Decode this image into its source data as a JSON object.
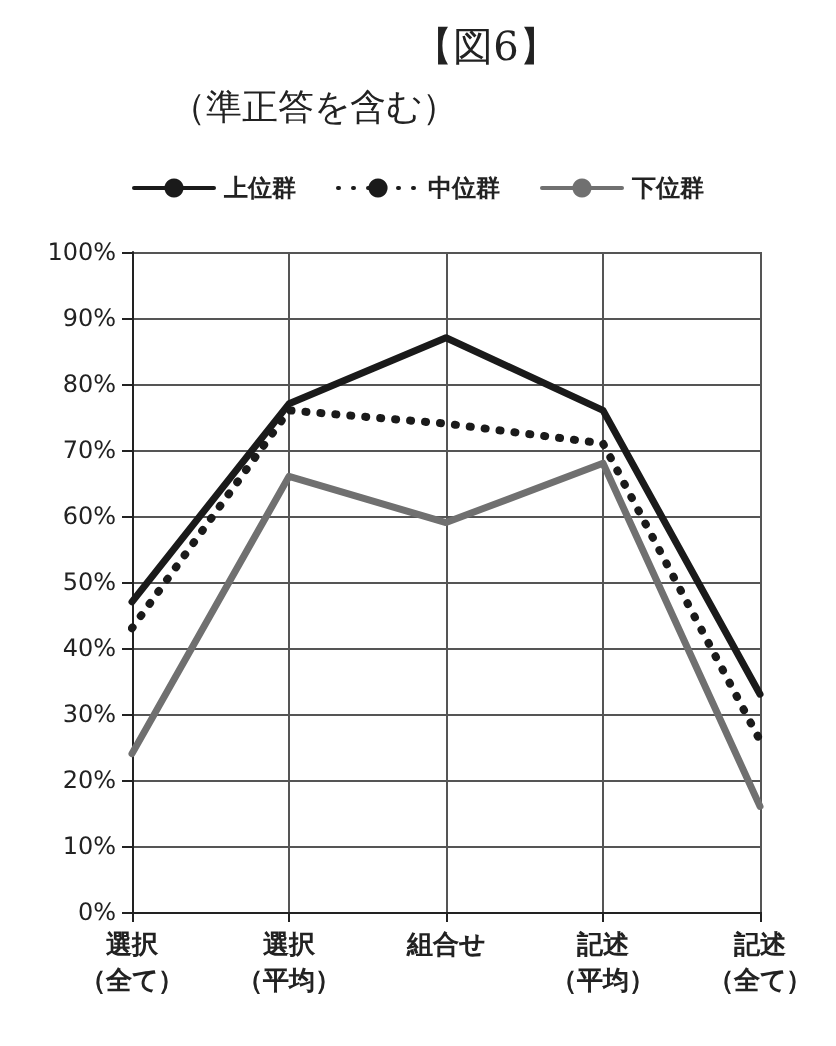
{
  "chart_data": {
    "type": "line",
    "title": "【図6】",
    "subtitle": "（準正答を含む）",
    "categories": [
      "選択（全て）",
      "選択（平均）",
      "組合せ",
      "記述（平均）",
      "記述（全て）"
    ],
    "series": [
      {
        "name": "上位群",
        "color": "#1a1a1a",
        "line_style": "solid",
        "values": [
          47,
          77,
          87,
          76,
          33
        ]
      },
      {
        "name": "中位群",
        "color": "#1a1a1a",
        "line_style": "dotted",
        "values": [
          43,
          76,
          74,
          71,
          26
        ]
      },
      {
        "name": "下位群",
        "color": "#707070",
        "line_style": "solid",
        "values": [
          24,
          66,
          59,
          68,
          16
        ]
      }
    ],
    "ylim": [
      0,
      100
    ],
    "yticks": [
      {
        "value": 0,
        "label": "0%"
      },
      {
        "value": 10,
        "label": "10%"
      },
      {
        "value": 20,
        "label": "20%"
      },
      {
        "value": 30,
        "label": "30%"
      },
      {
        "value": 40,
        "label": "40%"
      },
      {
        "value": 50,
        "label": "50%"
      },
      {
        "value": 60,
        "label": "60%"
      },
      {
        "value": 70,
        "label": "70%"
      },
      {
        "value": 80,
        "label": "80%"
      },
      {
        "value": 90,
        "label": "90%"
      },
      {
        "value": 100,
        "label": "100%"
      }
    ],
    "grid": true,
    "legend": "top",
    "marker": "none"
  }
}
